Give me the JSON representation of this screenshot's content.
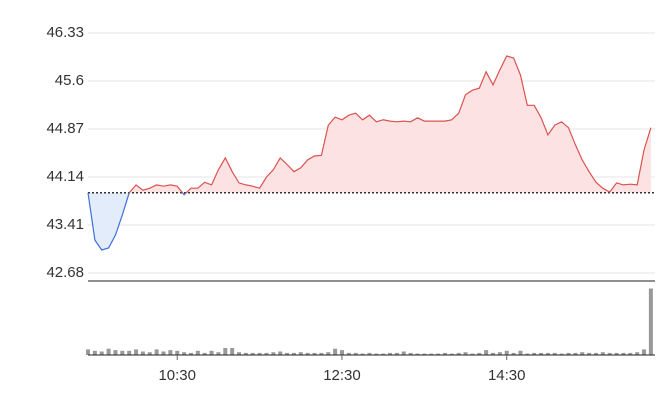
{
  "chart_data": {
    "type": "line",
    "x": [
      565,
      570,
      575,
      580,
      585,
      590,
      595,
      600,
      605,
      610,
      615,
      620,
      625,
      630,
      635,
      640,
      645,
      650,
      655,
      660,
      665,
      670,
      675,
      680,
      685,
      690,
      695,
      700,
      705,
      710,
      715,
      720,
      725,
      730,
      735,
      740,
      745,
      750,
      755,
      760,
      765,
      770,
      775,
      780,
      785,
      790,
      795,
      800,
      805,
      810,
      815,
      820,
      825,
      830,
      835,
      840,
      845,
      850,
      855,
      860,
      865,
      870,
      875,
      880,
      885,
      890,
      895,
      900,
      905,
      910,
      915,
      920,
      925,
      930,
      935,
      940,
      945,
      950,
      955,
      960,
      965,
      970,
      975
    ],
    "values": [
      43.9,
      43.18,
      43.03,
      43.06,
      43.26,
      43.56,
      43.9,
      44.02,
      43.94,
      43.97,
      44.02,
      44.0,
      44.02,
      44.0,
      43.87,
      43.97,
      43.97,
      44.06,
      44.02,
      44.25,
      44.43,
      44.22,
      44.05,
      44.02,
      44.0,
      43.97,
      44.14,
      44.25,
      44.43,
      44.33,
      44.22,
      44.28,
      44.4,
      44.46,
      44.47,
      44.93,
      45.05,
      45.01,
      45.08,
      45.11,
      45.01,
      45.08,
      44.98,
      45.01,
      44.99,
      44.98,
      44.99,
      44.98,
      45.04,
      44.99,
      44.99,
      44.99,
      44.99,
      45.01,
      45.11,
      45.39,
      45.46,
      45.49,
      45.74,
      45.54,
      45.77,
      45.98,
      45.95,
      45.69,
      45.23,
      45.23,
      45.04,
      44.78,
      44.93,
      44.98,
      44.89,
      44.63,
      44.4,
      44.22,
      44.06,
      43.97,
      43.91,
      44.05,
      44.02,
      44.03,
      44.02,
      44.55,
      44.89
    ],
    "volume": [
      8,
      6,
      5,
      9,
      7,
      6,
      6,
      8,
      5,
      4,
      8,
      5,
      7,
      6,
      4,
      3,
      6,
      3,
      6,
      4,
      10,
      10,
      4,
      3,
      3,
      3,
      3,
      4,
      5,
      3,
      3,
      4,
      3,
      3,
      3,
      4,
      9,
      7,
      3,
      3,
      2,
      3,
      2,
      2,
      3,
      3,
      5,
      3,
      2,
      2,
      2,
      2,
      3,
      2,
      3,
      4,
      2,
      3,
      7,
      3,
      4,
      6,
      3,
      6,
      2,
      3,
      3,
      3,
      3,
      2,
      3,
      3,
      4,
      3,
      3,
      4,
      3,
      3,
      3,
      3,
      4,
      8,
      95
    ],
    "volume_ylim": [
      0,
      100
    ],
    "prev_close": 43.9,
    "up_color": "#d9534f",
    "down_color": "#3f6fd8",
    "up_fill": "#fde2e4",
    "down_fill": "#e3ecfa",
    "volume_color": "#999999",
    "xlim": [
      565,
      978
    ],
    "ylim": [
      42.68,
      46.33
    ],
    "yticks": [
      46.33,
      45.6,
      44.87,
      44.14,
      43.41,
      42.68
    ],
    "xticks": [
      {
        "value": 630,
        "label": "10:30"
      },
      {
        "value": 750,
        "label": "12:30"
      },
      {
        "value": 870,
        "label": "14:30"
      }
    ],
    "grid": true
  }
}
